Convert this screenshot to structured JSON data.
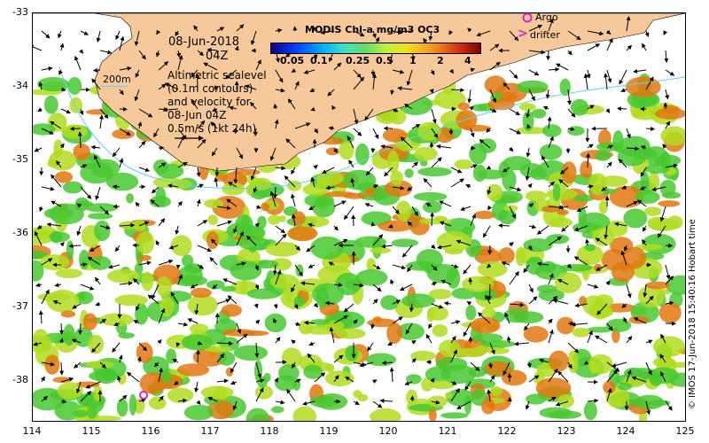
{
  "map": {
    "date_line": "08-Jun-2018",
    "time_line": "04Z",
    "isobath_label": "200m",
    "altimetry_lines": [
      "Altimetric sealevel",
      "(0.1m contours)",
      "and velocity for",
      "08-Jun 04Z",
      "0.5m/s (1kt 24h)"
    ],
    "colorbar_title": "MODIS Chl-a mg/m3 OC3",
    "colorbar_ticks": [
      "0.05",
      "0.1",
      "0.25",
      "0.5",
      "1",
      "2",
      "4"
    ],
    "legend_argo": "Argo",
    "legend_drifter": "drifter",
    "credit": "© IMOS 17-Jun-2018 15:40:16 Hobart time",
    "x_ticks": [
      "114",
      "115",
      "116",
      "117",
      "118",
      "119",
      "120",
      "121",
      "122",
      "123",
      "124",
      "125"
    ],
    "y_ticks": [
      "-33",
      "-34",
      "-35",
      "-36",
      "-37",
      "-38"
    ],
    "colors": {
      "land": "#f7c99a",
      "isobath": "#5fd4ee",
      "argo": "#e020c8",
      "chl_low": "#48c830",
      "chl_mid": "#b0dc20",
      "chl_high": "#e07810"
    }
  }
}
